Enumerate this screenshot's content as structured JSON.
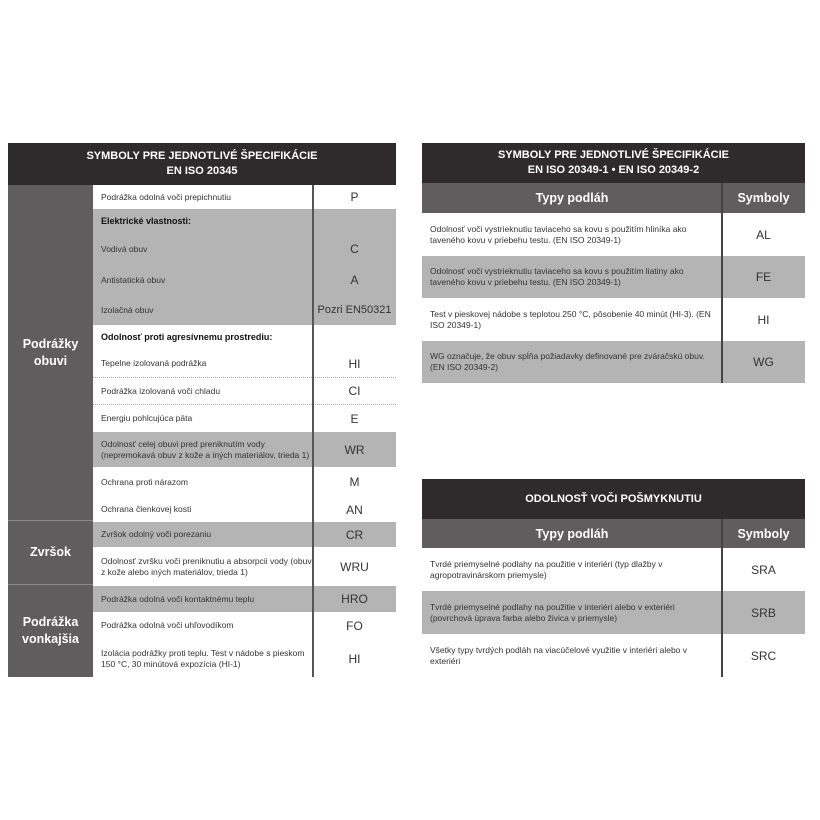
{
  "left": {
    "title": [
      "SYMBOLY PRE JEDNOTLIVÉ ŠPECIFIKÁCIE",
      "EN ISO 20345"
    ],
    "categories": [
      {
        "label": [
          "Podrážky",
          "obuvi"
        ]
      },
      {
        "label": [
          "Zvršok"
        ]
      },
      {
        "label": [
          "Podrážka",
          "vonkajšia"
        ]
      }
    ],
    "rows": [
      {
        "text": "Podrážka odolná voči prepichnutiu",
        "symbol": "P"
      },
      {
        "text": "Elektrické vlastnosti:",
        "symbol": ""
      },
      {
        "text": "Vodivá obuv",
        "symbol": "C"
      },
      {
        "text": "Antistatická obuv",
        "symbol": "A"
      },
      {
        "text": "Izolačná obuv",
        "symbol": "Pozri EN50321"
      },
      {
        "text": "Odolnosť proti agresívnemu prostrediu:",
        "symbol": ""
      },
      {
        "text": "Tepelne izolovaná podrážka",
        "symbol": "HI"
      },
      {
        "text": "Podrážka izolovaná voči chladu",
        "symbol": "CI"
      },
      {
        "text": "Energiu pohlcujúca päta",
        "symbol": "E"
      },
      {
        "text": "Odolnosť celej obuvi pred preniknutím vody (nepremokavá obuv z kože a iných materiálov, trieda 1)",
        "symbol": "WR"
      },
      {
        "text": "Ochrana proti nárazom",
        "symbol": "M"
      },
      {
        "text": "Ochrana členkovej kosti",
        "symbol": "AN"
      },
      {
        "text": "Zvršok odolný voči porezaniu",
        "symbol": "CR"
      },
      {
        "text": "Odolnosť zvršku voči preniknutiu a absorpcii vody (obuv z kože alebo iných materiálov, trieda 1)",
        "symbol": "WRU"
      },
      {
        "text": "Podrážka odolná voči kontaktnému teplu",
        "symbol": "HRO"
      },
      {
        "text": "Podrážka odolná voči uhľovodíkom",
        "symbol": "FO"
      },
      {
        "text": "Izolácia podrážky proti teplu. Test v nádobe s pieskom 150 °C, 30 minútová expozícia (HI-1)",
        "symbol": "HI"
      }
    ]
  },
  "right_top": {
    "title": [
      "SYMBOLY PRE JEDNOTLIVÉ ŠPECIFIKÁCIE",
      "EN ISO 20349-1 • EN ISO 20349-2"
    ],
    "col1": "Typy podláh",
    "col2": "Symboly",
    "rows": [
      {
        "text": "Odolnosť voči vystrieknutiu taviaceho sa kovu s použitím hliníka ako taveného kovu v priebehu testu. (EN ISO 20349-1)",
        "symbol": "AL"
      },
      {
        "text": "Odolnosť voči vystrieknutiu taviaceho sa kovu s použitím liatiny ako taveného kovu v priebehu testu. (EN ISO 20349-1)",
        "symbol": "FE"
      },
      {
        "text": "Test v pieskovej nádobe s teplotou 250 °C, pôsobenie 40 minút (HI-3). (EN ISO 20349-1)",
        "symbol": "HI"
      },
      {
        "text": "WG označuje, že obuv spĺňa požiadavky definované pre zváračskú obuv. (EN ISO 20349-2)",
        "symbol": "WG"
      }
    ]
  },
  "right_bottom": {
    "title": "ODOLNOSŤ VOČI POŠMYKNUTIU",
    "col1": "Typy podláh",
    "col2": "Symboly",
    "rows": [
      {
        "text": "Tvrdé priemyselné podlahy na použitie v interiéri (typ dlažby v agropotravinárskom priemysle)",
        "symbol": "SRA"
      },
      {
        "text": "Tvrdé priemyselné podlahy na použitie v interiéri alebo v exteriéri (povrchová úprava farba alebo živica v priemysle)",
        "symbol": "SRB"
      },
      {
        "text": "Všetky typy tvrdých podláh na viacúčelové využitie v interiéri alebo v exteriéri",
        "symbol": "SRC"
      }
    ]
  }
}
